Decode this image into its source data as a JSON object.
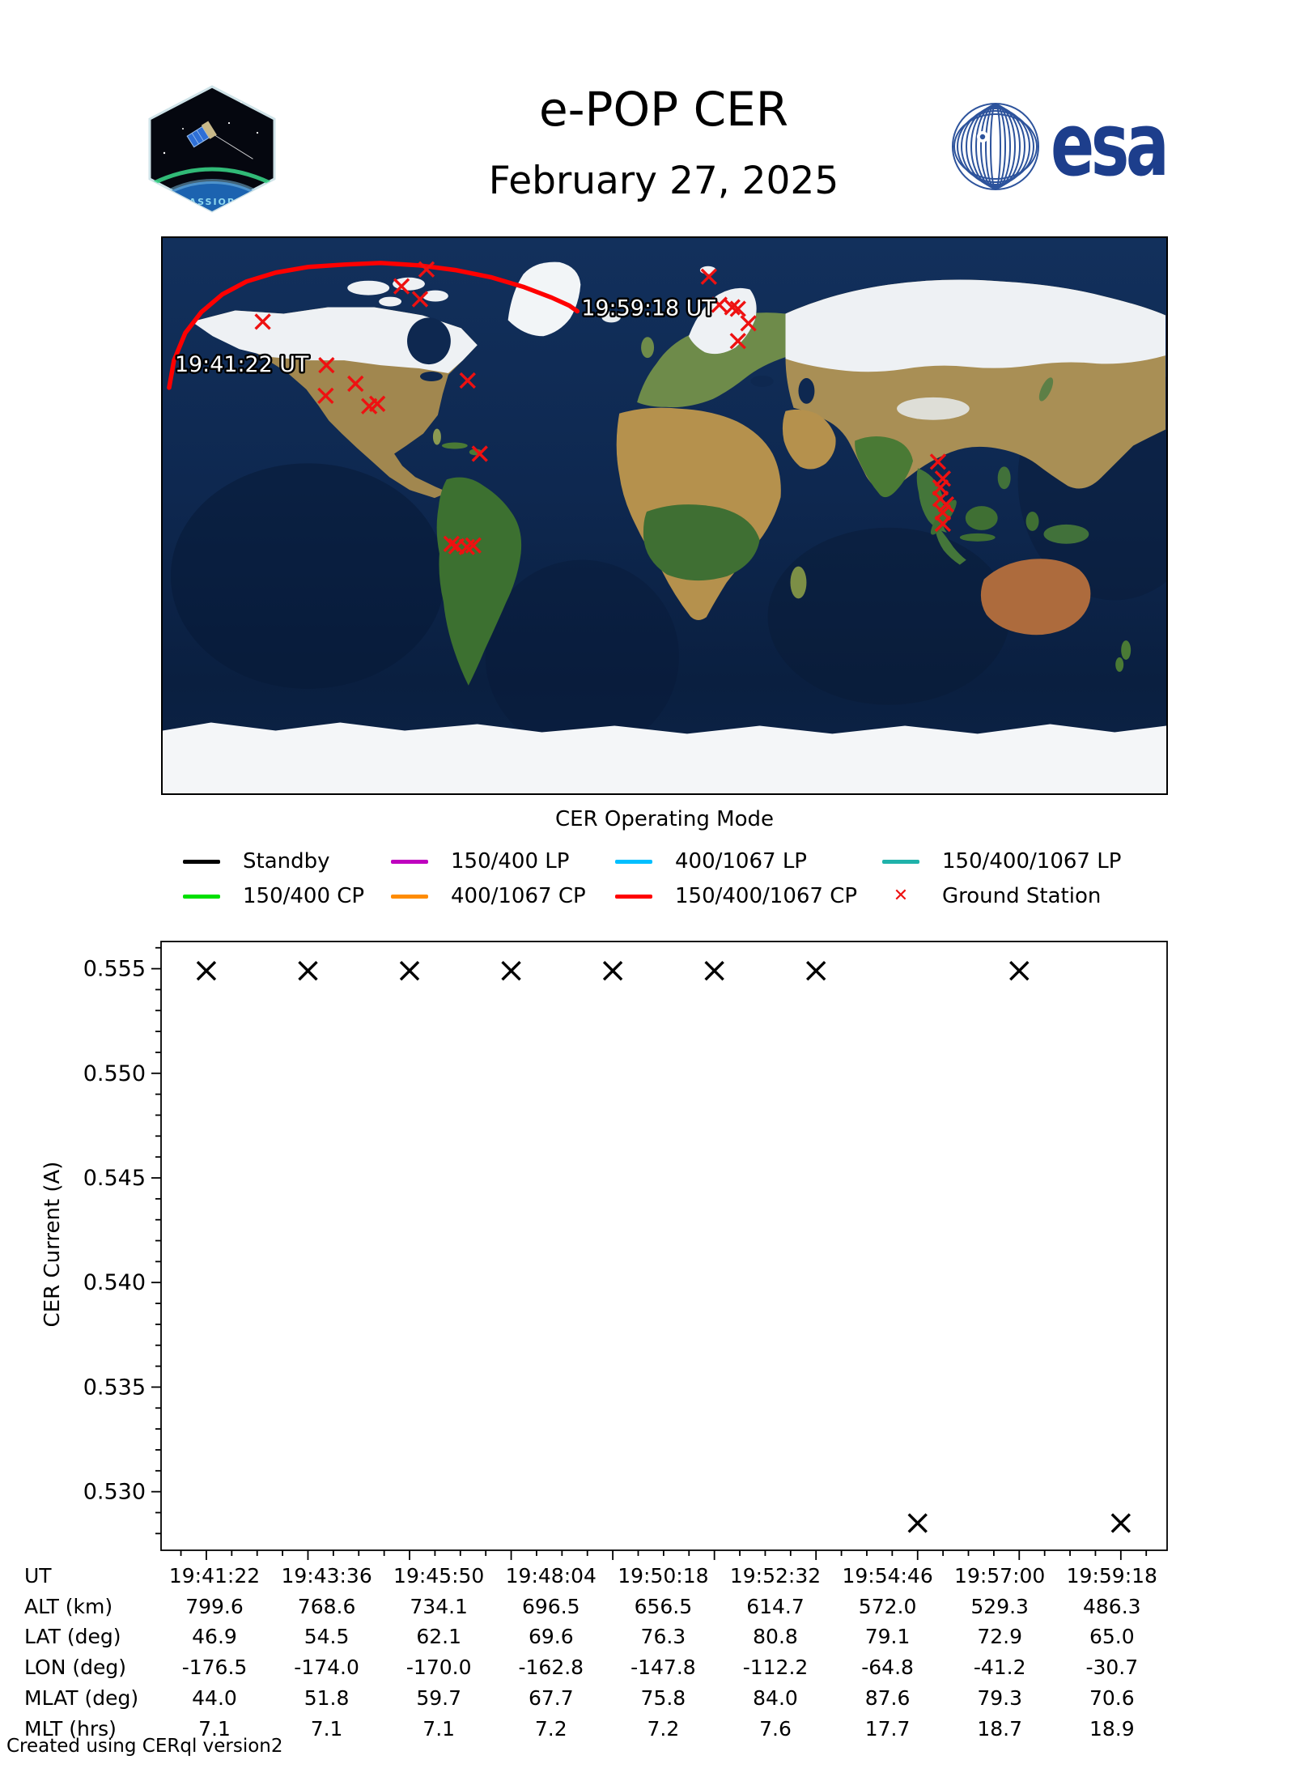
{
  "header": {
    "title": "e-POP CER",
    "date": "February 27, 2025",
    "patch_text": "CASSIOPE",
    "esa_text": "esa",
    "esa_blue": "#1d3e8c"
  },
  "map": {
    "start_label": "19:41:22 UT",
    "end_label": "19:59:18 UT",
    "track_color": "#ff0000",
    "station_color": "#ee1111",
    "track": [
      [
        8,
        186
      ],
      [
        14,
        152
      ],
      [
        28,
        118
      ],
      [
        48,
        92
      ],
      [
        74,
        70
      ],
      [
        104,
        54
      ],
      [
        140,
        43
      ],
      [
        180,
        36
      ],
      [
        225,
        33
      ],
      [
        270,
        31
      ],
      [
        318,
        34
      ],
      [
        364,
        40
      ],
      [
        408,
        49
      ],
      [
        448,
        61
      ],
      [
        482,
        74
      ],
      [
        504,
        84
      ],
      [
        514,
        91
      ]
    ],
    "stations": [
      [
        327,
        39
      ],
      [
        296,
        60
      ],
      [
        319,
        76
      ],
      [
        124,
        104
      ],
      [
        203,
        158
      ],
      [
        239,
        181
      ],
      [
        202,
        196
      ],
      [
        256,
        209
      ],
      [
        266,
        206
      ],
      [
        378,
        177
      ],
      [
        393,
        268
      ],
      [
        358,
        380
      ],
      [
        364,
        383
      ],
      [
        377,
        384
      ],
      [
        385,
        382
      ],
      [
        677,
        48
      ],
      [
        690,
        83
      ],
      [
        706,
        86
      ],
      [
        713,
        88
      ],
      [
        726,
        106
      ],
      [
        713,
        128
      ],
      [
        961,
        278
      ],
      [
        967,
        299
      ],
      [
        964,
        310
      ],
      [
        964,
        324
      ],
      [
        971,
        331
      ],
      [
        967,
        341
      ],
      [
        967,
        355
      ]
    ]
  },
  "legend": {
    "title": "CER Operating Mode",
    "items": [
      {
        "label": "Standby",
        "color": "#000000",
        "type": "line"
      },
      {
        "label": "150/400 LP",
        "color": "#bf00bf",
        "type": "line"
      },
      {
        "label": "400/1067 LP",
        "color": "#00bfff",
        "type": "line"
      },
      {
        "label": "150/400/1067 LP",
        "color": "#1fb2aa",
        "type": "line"
      },
      {
        "label": "150/400 CP",
        "color": "#00e000",
        "type": "line"
      },
      {
        "label": "400/1067 CP",
        "color": "#ff8c00",
        "type": "line"
      },
      {
        "label": "150/400/1067 CP",
        "color": "#ff0000",
        "type": "line"
      },
      {
        "label": "Ground Station",
        "color": "#ee1111",
        "type": "x-marker"
      }
    ]
  },
  "chart_data": {
    "type": "scatter",
    "marker": "x",
    "marker_color": "#000000",
    "ylabel": "CER Current (A)",
    "ylim": [
      0.5272,
      0.5563
    ],
    "yticks": [
      0.555,
      0.55,
      0.545,
      0.54,
      0.535,
      0.53
    ],
    "x_range_ut": [
      "19:41:22",
      "19:59:18"
    ],
    "points": [
      {
        "x_frac": 0.045,
        "y": 0.5549
      },
      {
        "x_frac": 0.146,
        "y": 0.5549
      },
      {
        "x_frac": 0.247,
        "y": 0.5549
      },
      {
        "x_frac": 0.348,
        "y": 0.5549
      },
      {
        "x_frac": 0.449,
        "y": 0.5549
      },
      {
        "x_frac": 0.55,
        "y": 0.5549
      },
      {
        "x_frac": 0.651,
        "y": 0.5549
      },
      {
        "x_frac": 0.752,
        "y": 0.5285
      },
      {
        "x_frac": 0.853,
        "y": 0.5549
      },
      {
        "x_frac": 0.954,
        "y": 0.5285
      }
    ]
  },
  "table": {
    "rows": [
      {
        "label": "UT",
        "values": [
          "19:41:22",
          "19:43:36",
          "19:45:50",
          "19:48:04",
          "19:50:18",
          "19:52:32",
          "19:54:46",
          "19:57:00",
          "19:59:18"
        ]
      },
      {
        "label": "ALT (km)",
        "values": [
          "799.6",
          "768.6",
          "734.1",
          "696.5",
          "656.5",
          "614.7",
          "572.0",
          "529.3",
          "486.3"
        ]
      },
      {
        "label": "LAT (deg)",
        "values": [
          "46.9",
          "54.5",
          "62.1",
          "69.6",
          "76.3",
          "80.8",
          "79.1",
          "72.9",
          "65.0"
        ]
      },
      {
        "label": "LON (deg)",
        "values": [
          "-176.5",
          "-174.0",
          "-170.0",
          "-162.8",
          "-147.8",
          "-112.2",
          "-64.8",
          "-41.2",
          "-30.7"
        ]
      },
      {
        "label": "MLAT (deg)",
        "values": [
          "44.0",
          "51.8",
          "59.7",
          "67.7",
          "75.8",
          "84.0",
          "87.6",
          "79.3",
          "70.6"
        ]
      },
      {
        "label": "MLT (hrs)",
        "values": [
          "7.1",
          "7.1",
          "7.1",
          "7.2",
          "7.2",
          "7.6",
          "17.7",
          "18.7",
          "18.9"
        ]
      }
    ]
  },
  "footer": {
    "credit": "Created using CERql version2"
  }
}
